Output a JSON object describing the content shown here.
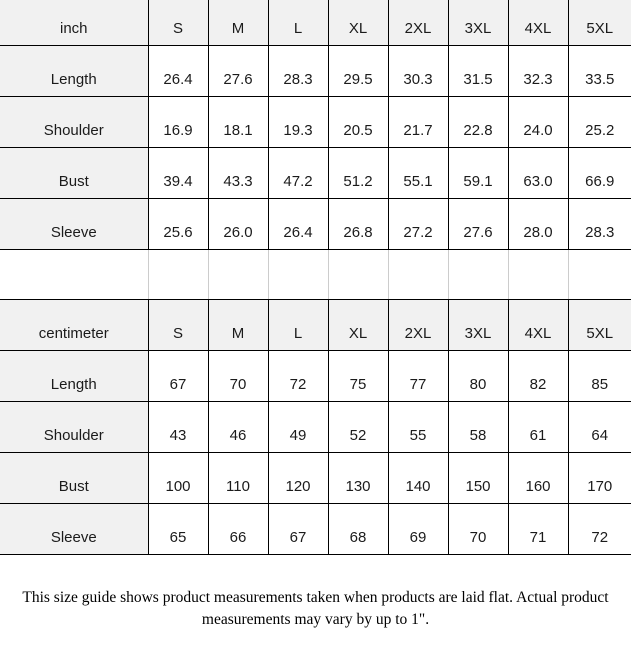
{
  "tables": [
    {
      "unit_label": "inch",
      "columns": [
        "S",
        "M",
        "L",
        "XL",
        "2XL",
        "3XL",
        "4XL",
        "5XL"
      ],
      "rows": [
        {
          "label": "Length",
          "values": [
            "26.4",
            "27.6",
            "28.3",
            "29.5",
            "30.3",
            "31.5",
            "32.3",
            "33.5"
          ]
        },
        {
          "label": "Shoulder",
          "values": [
            "16.9",
            "18.1",
            "19.3",
            "20.5",
            "21.7",
            "22.8",
            "24.0",
            "25.2"
          ]
        },
        {
          "label": "Bust",
          "values": [
            "39.4",
            "43.3",
            "47.2",
            "51.2",
            "55.1",
            "59.1",
            "63.0",
            "66.9"
          ]
        },
        {
          "label": "Sleeve",
          "values": [
            "25.6",
            "26.0",
            "26.4",
            "26.8",
            "27.2",
            "27.6",
            "28.0",
            "28.3"
          ]
        }
      ]
    },
    {
      "unit_label": "centimeter",
      "columns": [
        "S",
        "M",
        "L",
        "XL",
        "2XL",
        "3XL",
        "4XL",
        "5XL"
      ],
      "rows": [
        {
          "label": "Length",
          "values": [
            "67",
            "70",
            "72",
            "75",
            "77",
            "80",
            "82",
            "85"
          ]
        },
        {
          "label": "Shoulder",
          "values": [
            "43",
            "46",
            "49",
            "52",
            "55",
            "58",
            "61",
            "64"
          ]
        },
        {
          "label": "Bust",
          "values": [
            "100",
            "110",
            "120",
            "130",
            "140",
            "150",
            "160",
            "170"
          ]
        },
        {
          "label": "Sleeve",
          "values": [
            "65",
            "66",
            "67",
            "68",
            "69",
            "70",
            "71",
            "72"
          ]
        }
      ]
    }
  ],
  "footer_note": "This size guide shows product measurements taken when products are laid flat. Actual product measurements may vary by up to 1\".",
  "colors": {
    "header_bg": "#f1f1f1",
    "border": "#000000",
    "light_line": "#cccccc"
  }
}
